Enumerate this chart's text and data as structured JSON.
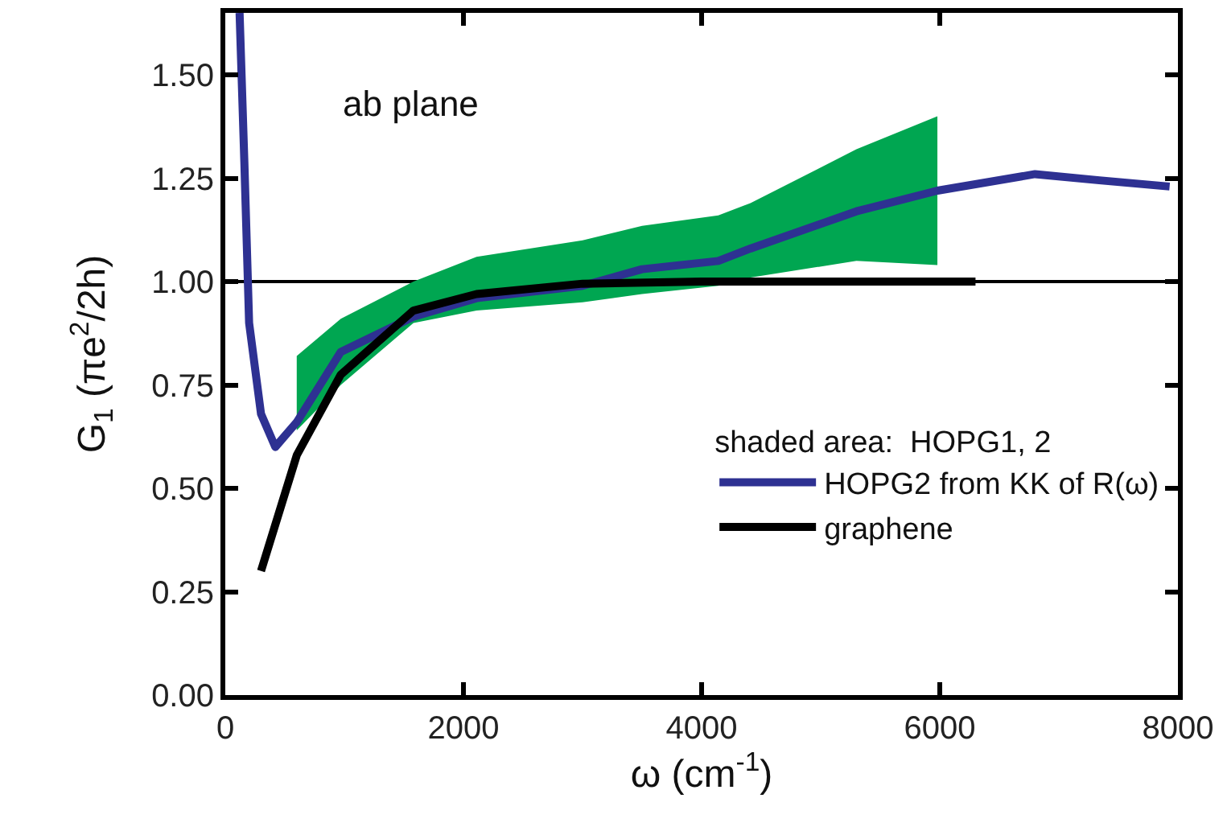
{
  "chart_data": {
    "type": "line",
    "xlabel": "ω (cm$^{-1}$)",
    "ylabel": "G$_{1}$ (πe$^{2}$/2h)",
    "legend_title": "shaded area:  HOPG1, 2",
    "annotations": [
      "ab plane"
    ],
    "xlim": [
      0,
      8000
    ],
    "xticks": [
      0,
      2000,
      4000,
      6000,
      8000
    ],
    "ylim": [
      0,
      1.65
    ],
    "yticks": [
      {
        "value": 0,
        "label": "0.00"
      },
      {
        "value": 0.25,
        "label": "0.25"
      },
      {
        "value": 0.5,
        "label": "0.50"
      },
      {
        "value": 0.75,
        "label": "0.75"
      },
      {
        "value": 1,
        "label": "1.00"
      },
      {
        "value": 1.25,
        "label": "1.25"
      },
      {
        "value": 1.5,
        "label": "1.50"
      }
    ],
    "grid": false,
    "legend": "bottom right",
    "marker": "none",
    "line_style": "solid",
    "ref_lines": [
      {
        "axis": "y",
        "value": 1,
        "color": "#000000"
      }
    ],
    "series": [
      {
        "type": "area",
        "color": "#00a651",
        "x": [
          600,
          970,
          1580,
          2110,
          3000,
          3500,
          4140,
          4410,
          5300,
          5980
        ],
        "values": [
          null,
          null,
          null,
          null,
          null,
          null,
          null,
          null,
          null,
          null
        ],
        "lower": [
          0.64,
          0.75,
          0.9,
          0.93,
          0.95,
          0.97,
          0.99,
          1.01,
          1.05,
          1.04
        ],
        "upper": [
          0.82,
          0.91,
          1.0,
          1.06,
          1.1,
          1.135,
          1.16,
          1.19,
          1.32,
          1.4
        ]
      },
      {
        "name": "HOPG2 from KK of R(ω)",
        "color": "#2e3192",
        "x": [
          120,
          160,
          200,
          300,
          420,
          600,
          970,
          1580,
          2110,
          3000,
          3500,
          4140,
          4410,
          5300,
          5980,
          6800,
          7340,
          7930
        ],
        "values": [
          1.65,
          1.29,
          0.9,
          0.68,
          0.6,
          0.66,
          0.83,
          0.915,
          0.96,
          0.99,
          1.03,
          1.05,
          1.08,
          1.17,
          1.22,
          1.26,
          1.245,
          1.23
        ]
      },
      {
        "name": "graphene",
        "color": "#000000",
        "x": [
          300,
          600,
          970,
          1580,
          2110,
          3000,
          4000,
          6300
        ],
        "values": [
          0.3,
          0.58,
          0.775,
          0.93,
          0.97,
          0.995,
          1.0,
          1.0
        ]
      }
    ]
  }
}
